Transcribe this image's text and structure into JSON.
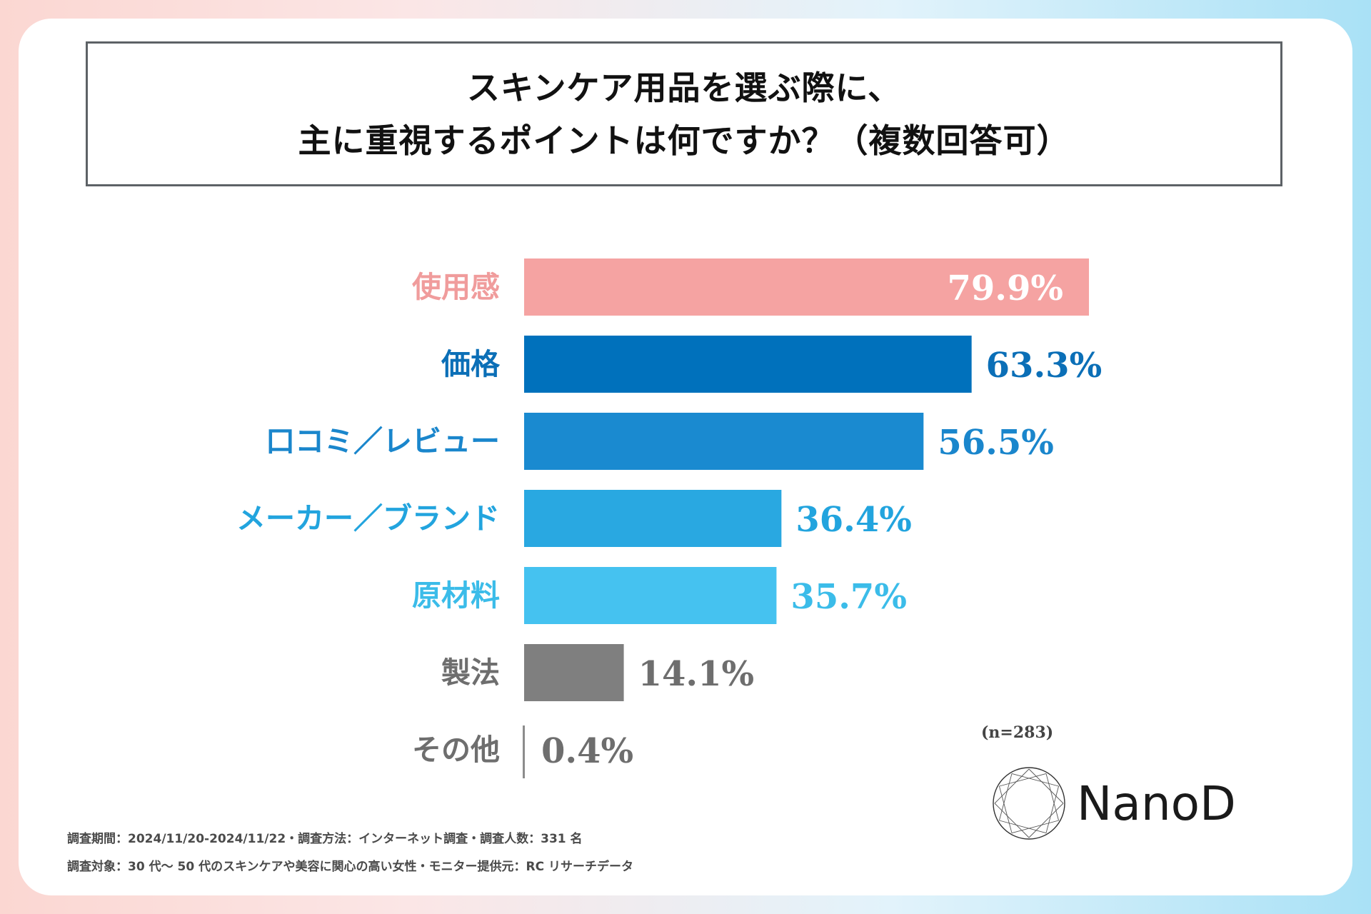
{
  "title": {
    "line1": "スキンケア用品を選ぶ際に、",
    "line2": "主に重視するポイントは何ですか？（複数回答可）"
  },
  "chart_data": {
    "type": "bar",
    "orientation": "horizontal",
    "title": "スキンケア用品を選ぶ際に、主に重視するポイントは何ですか？（複数回答可）",
    "categories": [
      "使用感",
      "価格",
      "口コミ／レビュー",
      "メーカー／ブランド",
      "原材料",
      "製法",
      "その他"
    ],
    "values": [
      79.9,
      63.3,
      56.5,
      36.4,
      35.7,
      14.1,
      0.4
    ],
    "value_labels": [
      "79.9%",
      "63.3%",
      "56.5%",
      "36.4%",
      "35.7%",
      "14.1%",
      "0.4%"
    ],
    "colors": [
      "#f5a3a2",
      "#0071bc",
      "#1a8ad0",
      "#29a8e1",
      "#45c2f0",
      "#7f7f7f",
      "#7f7f7f"
    ],
    "label_colors": [
      "#f09c9c",
      "#0b6fb7",
      "#1a86cc",
      "#22a4de",
      "#3bbce9",
      "#6e6e6e",
      "#6e6e6e"
    ],
    "xlim": [
      0,
      100
    ],
    "sample_note": "(n=283)"
  },
  "footnotes": {
    "line1": "調査期間：2024/11/20-2024/11/22・調査方法：インターネット調査・調査人数：331 名",
    "line2": "調査対象：30 代〜 50 代のスキンケアや美容に関心の高い女性・モニター提供元：RC リサーチデータ"
  },
  "logo": {
    "text": "NanoD",
    "icon": "diamond-ring-icon"
  }
}
